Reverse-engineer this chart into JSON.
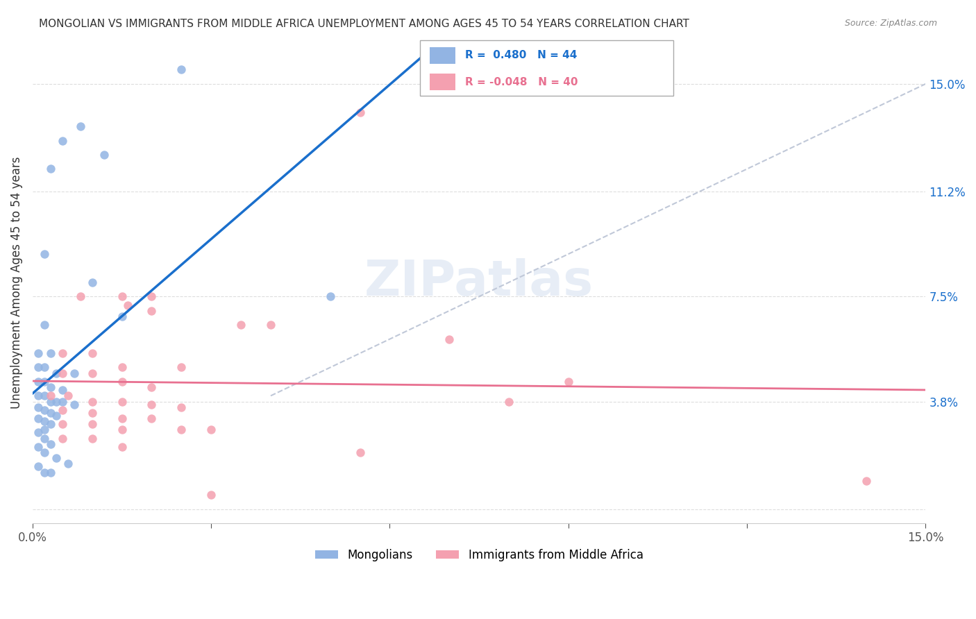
{
  "title": "MONGOLIAN VS IMMIGRANTS FROM MIDDLE AFRICA UNEMPLOYMENT AMONG AGES 45 TO 54 YEARS CORRELATION CHART",
  "source": "Source: ZipAtlas.com",
  "ylabel": "Unemployment Among Ages 45 to 54 years",
  "xlim": [
    0.0,
    0.15
  ],
  "ylim": [
    -0.005,
    0.165
  ],
  "yticks": [
    0.0,
    0.038,
    0.075,
    0.112,
    0.15
  ],
  "ytick_labels": [
    "",
    "3.8%",
    "7.5%",
    "11.2%",
    "15.0%"
  ],
  "xticks": [
    0.0,
    0.03,
    0.06,
    0.09,
    0.12,
    0.15
  ],
  "xtick_labels": [
    "0.0%",
    "",
    "",
    "",
    "",
    "15.0%"
  ],
  "mongolian_color": "#92b4e3",
  "immigrant_color": "#f4a0b0",
  "mongolian_line_color": "#1a6fcc",
  "immigrant_line_color": "#e87090",
  "diagonal_color": "#c0c8d8",
  "watermark": "ZIPatlas",
  "mongolian_scatter": [
    [
      0.005,
      0.13
    ],
    [
      0.008,
      0.135
    ],
    [
      0.012,
      0.125
    ],
    [
      0.003,
      0.12
    ],
    [
      0.01,
      0.08
    ],
    [
      0.002,
      0.09
    ],
    [
      0.002,
      0.065
    ],
    [
      0.015,
      0.068
    ],
    [
      0.001,
      0.055
    ],
    [
      0.003,
      0.055
    ],
    [
      0.001,
      0.05
    ],
    [
      0.002,
      0.05
    ],
    [
      0.004,
      0.048
    ],
    [
      0.007,
      0.048
    ],
    [
      0.001,
      0.045
    ],
    [
      0.002,
      0.045
    ],
    [
      0.003,
      0.043
    ],
    [
      0.005,
      0.042
    ],
    [
      0.001,
      0.04
    ],
    [
      0.002,
      0.04
    ],
    [
      0.003,
      0.038
    ],
    [
      0.004,
      0.038
    ],
    [
      0.005,
      0.038
    ],
    [
      0.007,
      0.037
    ],
    [
      0.001,
      0.036
    ],
    [
      0.002,
      0.035
    ],
    [
      0.003,
      0.034
    ],
    [
      0.004,
      0.033
    ],
    [
      0.001,
      0.032
    ],
    [
      0.002,
      0.031
    ],
    [
      0.003,
      0.03
    ],
    [
      0.002,
      0.028
    ],
    [
      0.001,
      0.027
    ],
    [
      0.002,
      0.025
    ],
    [
      0.003,
      0.023
    ],
    [
      0.001,
      0.022
    ],
    [
      0.002,
      0.02
    ],
    [
      0.004,
      0.018
    ],
    [
      0.006,
      0.016
    ],
    [
      0.001,
      0.015
    ],
    [
      0.002,
      0.013
    ],
    [
      0.003,
      0.013
    ],
    [
      0.05,
      0.075
    ],
    [
      0.025,
      0.155
    ]
  ],
  "immigrant_scatter": [
    [
      0.055,
      0.14
    ],
    [
      0.008,
      0.075
    ],
    [
      0.015,
      0.075
    ],
    [
      0.02,
      0.075
    ],
    [
      0.016,
      0.072
    ],
    [
      0.02,
      0.07
    ],
    [
      0.035,
      0.065
    ],
    [
      0.04,
      0.065
    ],
    [
      0.005,
      0.055
    ],
    [
      0.01,
      0.055
    ],
    [
      0.015,
      0.05
    ],
    [
      0.025,
      0.05
    ],
    [
      0.005,
      0.048
    ],
    [
      0.01,
      0.048
    ],
    [
      0.015,
      0.045
    ],
    [
      0.02,
      0.043
    ],
    [
      0.003,
      0.04
    ],
    [
      0.006,
      0.04
    ],
    [
      0.01,
      0.038
    ],
    [
      0.015,
      0.038
    ],
    [
      0.02,
      0.037
    ],
    [
      0.025,
      0.036
    ],
    [
      0.005,
      0.035
    ],
    [
      0.01,
      0.034
    ],
    [
      0.015,
      0.032
    ],
    [
      0.02,
      0.032
    ],
    [
      0.005,
      0.03
    ],
    [
      0.01,
      0.03
    ],
    [
      0.015,
      0.028
    ],
    [
      0.025,
      0.028
    ],
    [
      0.03,
      0.028
    ],
    [
      0.005,
      0.025
    ],
    [
      0.01,
      0.025
    ],
    [
      0.015,
      0.022
    ],
    [
      0.07,
      0.06
    ],
    [
      0.08,
      0.038
    ],
    [
      0.09,
      0.045
    ],
    [
      0.055,
      0.02
    ],
    [
      0.14,
      0.01
    ],
    [
      0.03,
      0.005
    ]
  ]
}
